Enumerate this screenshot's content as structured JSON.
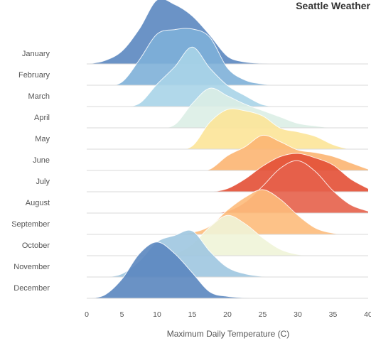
{
  "chart_data": {
    "type": "ridgeline",
    "title": "Seattle Weather",
    "xlabel": "Maximum Daily Temperature (C)",
    "xlim": [
      0,
      40
    ],
    "xticks": [
      0,
      5,
      10,
      15,
      20,
      25,
      30,
      35,
      40
    ],
    "kde_sample_temps": [
      0,
      2.5,
      5,
      7.5,
      10,
      12.5,
      15,
      17.5,
      20,
      22.5,
      25,
      27.5,
      30,
      32.5,
      35,
      37.5,
      40
    ],
    "series": [
      {
        "name": "January",
        "color": "#5b87c0",
        "values": [
          0.0,
          0.05,
          0.2,
          0.55,
          1.0,
          0.93,
          0.75,
          0.45,
          0.12,
          0.03,
          0.01,
          0.0,
          0.0,
          0.0,
          0.0,
          0.0,
          0.0
        ]
      },
      {
        "name": "February",
        "color": "#7eb0d8",
        "values": [
          0.0,
          0.0,
          0.05,
          0.4,
          0.8,
          0.87,
          0.88,
          0.75,
          0.27,
          0.08,
          0.02,
          0.0,
          0.0,
          0.0,
          0.0,
          0.0,
          0.0
        ]
      },
      {
        "name": "March",
        "color": "#a9d4e8",
        "values": [
          0.0,
          0.0,
          0.0,
          0.05,
          0.35,
          0.62,
          0.93,
          0.6,
          0.33,
          0.17,
          0.03,
          0.0,
          0.0,
          0.0,
          0.0,
          0.0,
          0.0
        ]
      },
      {
        "name": "April",
        "color": "#dbeee6",
        "values": [
          0.0,
          0.0,
          0.0,
          0.0,
          0.0,
          0.05,
          0.38,
          0.62,
          0.5,
          0.37,
          0.27,
          0.17,
          0.07,
          0.03,
          0.0,
          0.0,
          0.0
        ]
      },
      {
        "name": "May",
        "color": "#fce498",
        "values": [
          0.0,
          0.0,
          0.0,
          0.0,
          0.0,
          0.0,
          0.05,
          0.42,
          0.62,
          0.6,
          0.52,
          0.33,
          0.27,
          0.2,
          0.07,
          0.0,
          0.0
        ]
      },
      {
        "name": "June",
        "color": "#fcb572",
        "values": [
          0.0,
          0.0,
          0.0,
          0.0,
          0.0,
          0.0,
          0.0,
          0.02,
          0.23,
          0.37,
          0.55,
          0.45,
          0.32,
          0.28,
          0.22,
          0.12,
          0.02
        ]
      },
      {
        "name": "July",
        "color": "#e34f35",
        "values": [
          0.0,
          0.0,
          0.0,
          0.0,
          0.0,
          0.0,
          0.0,
          0.0,
          0.05,
          0.2,
          0.4,
          0.55,
          0.6,
          0.53,
          0.42,
          0.2,
          0.05
        ]
      },
      {
        "name": "August",
        "color": "#e6614a",
        "values": [
          0.0,
          0.0,
          0.0,
          0.0,
          0.0,
          0.0,
          0.0,
          0.0,
          0.03,
          0.17,
          0.42,
          0.7,
          0.82,
          0.65,
          0.35,
          0.13,
          0.03
        ]
      },
      {
        "name": "September",
        "color": "#fdbb7b",
        "values": [
          0.0,
          0.0,
          0.0,
          0.0,
          0.0,
          0.0,
          0.03,
          0.13,
          0.38,
          0.58,
          0.7,
          0.55,
          0.3,
          0.1,
          0.02,
          0.0,
          0.0
        ]
      },
      {
        "name": "October",
        "color": "#f0f4d8",
        "values": [
          0.0,
          0.0,
          0.0,
          0.0,
          0.0,
          0.03,
          0.18,
          0.45,
          0.63,
          0.5,
          0.28,
          0.1,
          0.02,
          0.0,
          0.0,
          0.0,
          0.0
        ]
      },
      {
        "name": "November",
        "color": "#9ec7e0",
        "values": [
          0.0,
          0.0,
          0.05,
          0.25,
          0.55,
          0.65,
          0.72,
          0.4,
          0.15,
          0.05,
          0.01,
          0.0,
          0.0,
          0.0,
          0.0,
          0.0,
          0.0
        ]
      },
      {
        "name": "December",
        "color": "#5a86bf",
        "values": [
          0.0,
          0.05,
          0.3,
          0.7,
          0.88,
          0.7,
          0.4,
          0.1,
          0.03,
          0.01,
          0.0,
          0.0,
          0.0,
          0.0,
          0.0,
          0.0,
          0.0
        ]
      }
    ],
    "grid": false,
    "legend": "none"
  }
}
